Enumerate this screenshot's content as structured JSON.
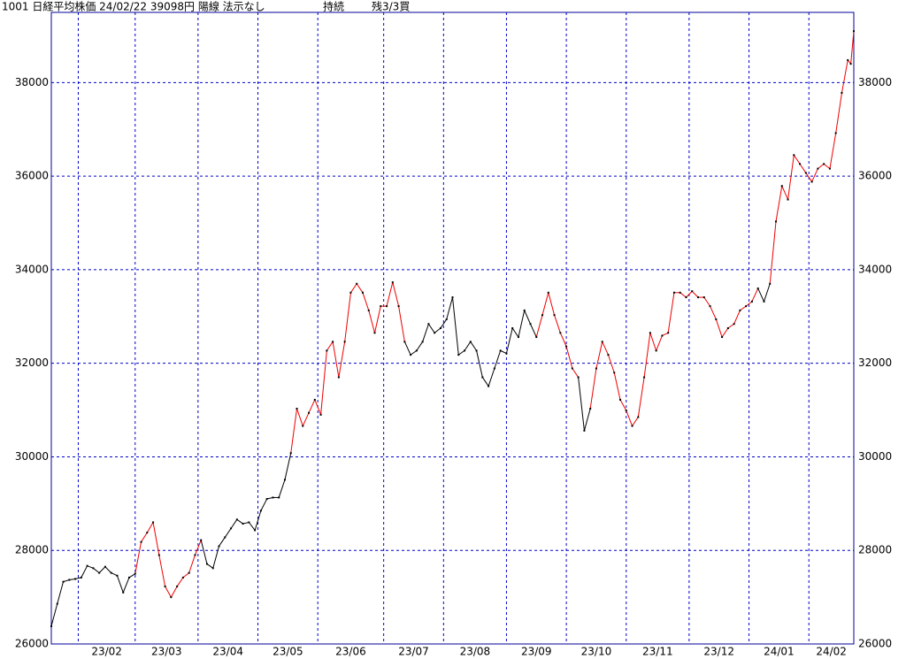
{
  "chart_data": {
    "type": "line",
    "title": "1001 日経平均株価 24/02/22 39098円 陽線 法示なし",
    "status": "持続",
    "position": "残3/3買",
    "x": [
      0,
      2,
      4,
      6,
      8,
      10,
      12,
      14,
      16,
      18,
      20,
      22,
      24,
      26,
      28,
      30,
      32,
      34,
      36,
      38,
      40,
      42,
      44,
      46,
      48,
      50,
      52,
      54,
      56,
      58,
      60,
      62,
      64,
      66,
      68,
      70,
      72,
      74,
      76,
      78,
      80,
      82,
      84,
      86,
      88,
      90,
      92,
      94,
      96,
      98,
      100,
      102,
      104,
      106,
      108,
      110,
      112,
      114,
      116,
      118,
      120,
      122,
      124,
      126,
      128,
      130,
      132,
      134,
      136,
      138,
      140,
      142,
      144,
      146,
      148,
      150,
      152,
      154,
      156,
      158,
      160,
      162,
      164,
      166,
      168,
      170,
      172,
      174,
      176,
      178,
      180,
      182,
      184,
      186,
      188,
      190,
      192,
      194,
      196,
      198,
      200,
      202,
      204,
      206,
      208,
      210,
      212,
      214,
      216,
      218,
      220,
      222,
      224,
      226,
      228,
      230,
      232,
      234,
      236,
      238,
      240,
      242,
      244,
      246,
      248,
      250,
      252,
      254,
      256,
      258,
      260,
      262,
      264,
      266,
      267,
      268
    ],
    "values": [
      26380,
      26860,
      27330,
      27370,
      27390,
      27420,
      27670,
      27620,
      27520,
      27650,
      27520,
      27460,
      27100,
      27420,
      27500,
      28180,
      28380,
      28600,
      27900,
      27230,
      27000,
      27230,
      27420,
      27520,
      27900,
      28220,
      27710,
      27620,
      28090,
      28280,
      28470,
      28660,
      28570,
      28600,
      28430,
      28850,
      29100,
      29130,
      29130,
      29510,
      30080,
      31030,
      30660,
      30940,
      31220,
      30900,
      32270,
      32460,
      31700,
      32460,
      33510,
      33700,
      33510,
      33130,
      32650,
      33220,
      33220,
      33730,
      33220,
      32460,
      32180,
      32270,
      32460,
      32840,
      32650,
      32750,
      32940,
      33410,
      32180,
      32270,
      32460,
      32270,
      31700,
      31510,
      31890,
      32270,
      32210,
      32750,
      32560,
      33130,
      32840,
      32560,
      33030,
      33510,
      33030,
      32650,
      32360,
      31890,
      31700,
      30560,
      31030,
      31890,
      32460,
      32180,
      31800,
      31220,
      30990,
      30660,
      30850,
      31700,
      32650,
      32270,
      32590,
      32650,
      33510,
      33510,
      33410,
      33540,
      33410,
      33410,
      33220,
      32940,
      32560,
      32750,
      32840,
      33130,
      33220,
      33320,
      33600,
      33320,
      33700,
      35030,
      35790,
      35500,
      36450,
      36260,
      36070,
      35880,
      36160,
      36260,
      36160,
      36920,
      37780,
      38480,
      38400,
      39098
    ],
    "colors": [
      "#000",
      "#000",
      "#000",
      "#000",
      "#000",
      "#000",
      "#000",
      "#000",
      "#000",
      "#000",
      "#000",
      "#000",
      "#000",
      "#000",
      "#000",
      "#e00",
      "#e00",
      "#e00",
      "#e00",
      "#e00",
      "#e00",
      "#e00",
      "#e00",
      "#e00",
      "#e00",
      "#e00",
      "#000",
      "#000",
      "#000",
      "#000",
      "#000",
      "#000",
      "#000",
      "#000",
      "#000",
      "#000",
      "#000",
      "#000",
      "#000",
      "#000",
      "#000",
      "#e00",
      "#e00",
      "#e00",
      "#e00",
      "#e00",
      "#e00",
      "#e00",
      "#e00",
      "#e00",
      "#e00",
      "#e00",
      "#e00",
      "#e00",
      "#e00",
      "#e00",
      "#e00",
      "#e00",
      "#e00",
      "#e00",
      "#000",
      "#000",
      "#000",
      "#000",
      "#000",
      "#000",
      "#000",
      "#000",
      "#000",
      "#000",
      "#000",
      "#000",
      "#000",
      "#000",
      "#000",
      "#000",
      "#000",
      "#000",
      "#000",
      "#000",
      "#000",
      "#000",
      "#e00",
      "#e00",
      "#e00",
      "#e00",
      "#e00",
      "#e00",
      "#e00",
      "#000",
      "#000",
      "#e00",
      "#e00",
      "#e00",
      "#e00",
      "#e00",
      "#e00",
      "#e00",
      "#e00",
      "#e00",
      "#e00",
      "#e00",
      "#e00",
      "#e00",
      "#e00",
      "#e00",
      "#e00",
      "#e00",
      "#e00",
      "#e00",
      "#e00",
      "#e00",
      "#e00",
      "#e00",
      "#e00",
      "#e00",
      "#e00",
      "#e00",
      "#e00",
      "#000",
      "#000",
      "#e00",
      "#e00",
      "#e00",
      "#e00",
      "#e00",
      "#e00",
      "#e00",
      "#e00",
      "#e00",
      "#e00",
      "#e00",
      "#e00",
      "#e00",
      "#e00",
      "#e00"
    ],
    "xlim": [
      0,
      268
    ],
    "xticks": [
      {
        "value": 9,
        "label": "23/02"
      },
      {
        "value": 28,
        "label": "23/03"
      },
      {
        "value": 49,
        "label": "23/04"
      },
      {
        "value": 69,
        "label": "23/05"
      },
      {
        "value": 89,
        "label": "23/06"
      },
      {
        "value": 111,
        "label": "23/07"
      },
      {
        "value": 131,
        "label": "23/08"
      },
      {
        "value": 152,
        "label": "23/09"
      },
      {
        "value": 172,
        "label": "23/10"
      },
      {
        "value": 192,
        "label": "23/11"
      },
      {
        "value": 213,
        "label": "23/12"
      },
      {
        "value": 233,
        "label": "24/01"
      },
      {
        "value": 253,
        "label": "24/02"
      }
    ],
    "ylim": [
      26000,
      39500
    ],
    "yticks": [
      26000,
      28000,
      30000,
      32000,
      34000,
      36000,
      38000
    ],
    "grid": true,
    "grid_color": "#0000cc",
    "frame_color": "#000099",
    "marker_color": "#000"
  }
}
